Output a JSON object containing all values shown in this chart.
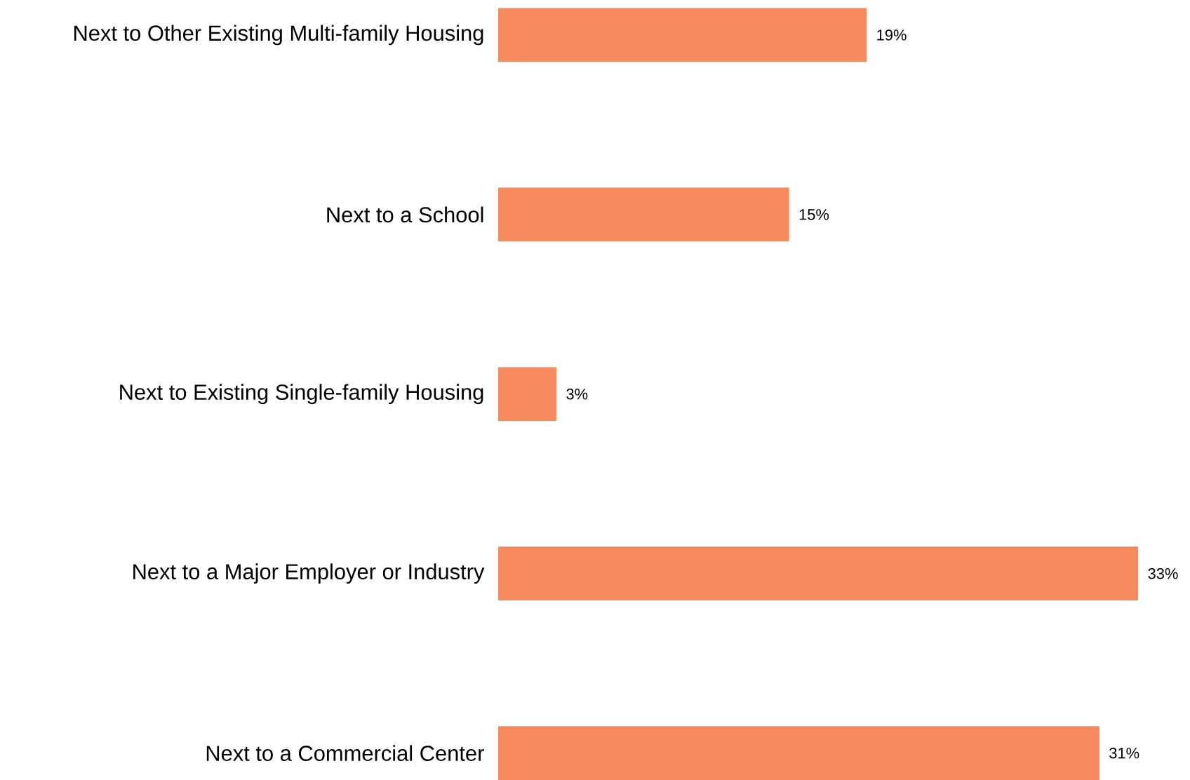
{
  "chart_data": {
    "type": "bar",
    "orientation": "horizontal",
    "categories": [
      "Next to Other Existing Multi-family Housing",
      "Next to a School",
      "Next to Existing Single-family Housing",
      "Next to a Major Employer or Industry",
      "Next to a Commercial Center"
    ],
    "values": [
      19,
      15,
      3,
      33,
      31
    ],
    "value_labels": [
      "19%",
      "15%",
      "3%",
      "33%",
      "31%"
    ],
    "color": "#f68a5f"
  }
}
